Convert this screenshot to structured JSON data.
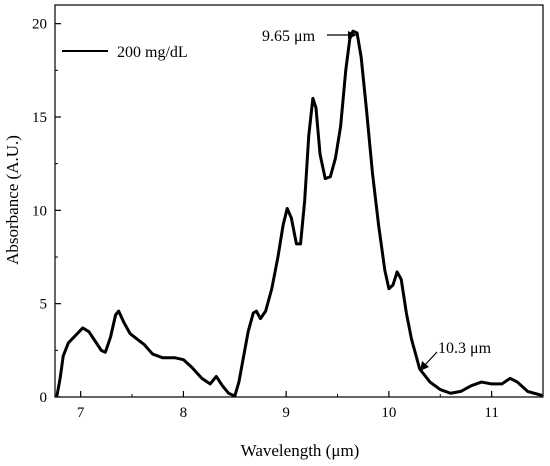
{
  "chart_data": {
    "type": "line",
    "xlabel": "Wavelength (μm)",
    "ylabel": "Absorbance (A.U.)",
    "xlim": [
      6.75,
      11.5
    ],
    "ylim": [
      0,
      21
    ],
    "x_ticks": [
      7,
      8,
      9,
      10,
      11
    ],
    "y_ticks": [
      0,
      5,
      10,
      15,
      20
    ],
    "x_tick_labels": [
      "7",
      "8",
      "9",
      "10",
      "11"
    ],
    "y_tick_labels": [
      "0",
      "5",
      "10",
      "15",
      "20"
    ],
    "grid": false,
    "legend_position": "top-left",
    "series": [
      {
        "name": "200 mg/dL",
        "color": "#000000",
        "points": [
          [
            6.77,
            0.1
          ],
          [
            6.8,
            1.0
          ],
          [
            6.83,
            2.2
          ],
          [
            6.88,
            2.9
          ],
          [
            6.95,
            3.3
          ],
          [
            7.02,
            3.7
          ],
          [
            7.08,
            3.5
          ],
          [
            7.14,
            3.0
          ],
          [
            7.2,
            2.5
          ],
          [
            7.24,
            2.4
          ],
          [
            7.29,
            3.2
          ],
          [
            7.34,
            4.4
          ],
          [
            7.37,
            4.6
          ],
          [
            7.42,
            4.0
          ],
          [
            7.48,
            3.4
          ],
          [
            7.55,
            3.1
          ],
          [
            7.62,
            2.8
          ],
          [
            7.7,
            2.3
          ],
          [
            7.8,
            2.1
          ],
          [
            7.92,
            2.1
          ],
          [
            8.0,
            2.0
          ],
          [
            8.08,
            1.6
          ],
          [
            8.18,
            1.0
          ],
          [
            8.26,
            0.7
          ],
          [
            8.32,
            1.1
          ],
          [
            8.38,
            0.6
          ],
          [
            8.44,
            0.2
          ],
          [
            8.5,
            0.05
          ],
          [
            8.54,
            0.8
          ],
          [
            8.58,
            2.0
          ],
          [
            8.63,
            3.5
          ],
          [
            8.68,
            4.5
          ],
          [
            8.71,
            4.6
          ],
          [
            8.75,
            4.2
          ],
          [
            8.8,
            4.6
          ],
          [
            8.86,
            5.8
          ],
          [
            8.92,
            7.5
          ],
          [
            8.97,
            9.2
          ],
          [
            9.01,
            10.1
          ],
          [
            9.05,
            9.6
          ],
          [
            9.1,
            8.2
          ],
          [
            9.14,
            8.2
          ],
          [
            9.18,
            10.5
          ],
          [
            9.22,
            14.0
          ],
          [
            9.26,
            16.0
          ],
          [
            9.29,
            15.5
          ],
          [
            9.33,
            13.0
          ],
          [
            9.38,
            11.7
          ],
          [
            9.43,
            11.8
          ],
          [
            9.48,
            12.8
          ],
          [
            9.53,
            14.5
          ],
          [
            9.58,
            17.5
          ],
          [
            9.62,
            19.2
          ],
          [
            9.65,
            19.6
          ],
          [
            9.69,
            19.5
          ],
          [
            9.73,
            18.2
          ],
          [
            9.78,
            15.5
          ],
          [
            9.84,
            12.0
          ],
          [
            9.9,
            9.2
          ],
          [
            9.96,
            6.8
          ],
          [
            10.0,
            5.8
          ],
          [
            10.04,
            6.0
          ],
          [
            10.08,
            6.7
          ],
          [
            10.12,
            6.3
          ],
          [
            10.17,
            4.5
          ],
          [
            10.22,
            3.1
          ],
          [
            10.3,
            1.5
          ],
          [
            10.4,
            0.8
          ],
          [
            10.5,
            0.4
          ],
          [
            10.6,
            0.2
          ],
          [
            10.7,
            0.3
          ],
          [
            10.8,
            0.6
          ],
          [
            10.9,
            0.8
          ],
          [
            11.0,
            0.7
          ],
          [
            11.1,
            0.7
          ],
          [
            11.18,
            1.0
          ],
          [
            11.25,
            0.8
          ],
          [
            11.35,
            0.3
          ],
          [
            11.48,
            0.1
          ]
        ]
      }
    ],
    "annotations": [
      {
        "text": "9.65 μm",
        "x": 9.65,
        "y": 19.6
      },
      {
        "text": "10.3 μm",
        "x": 10.3,
        "y": 1.5
      }
    ]
  }
}
